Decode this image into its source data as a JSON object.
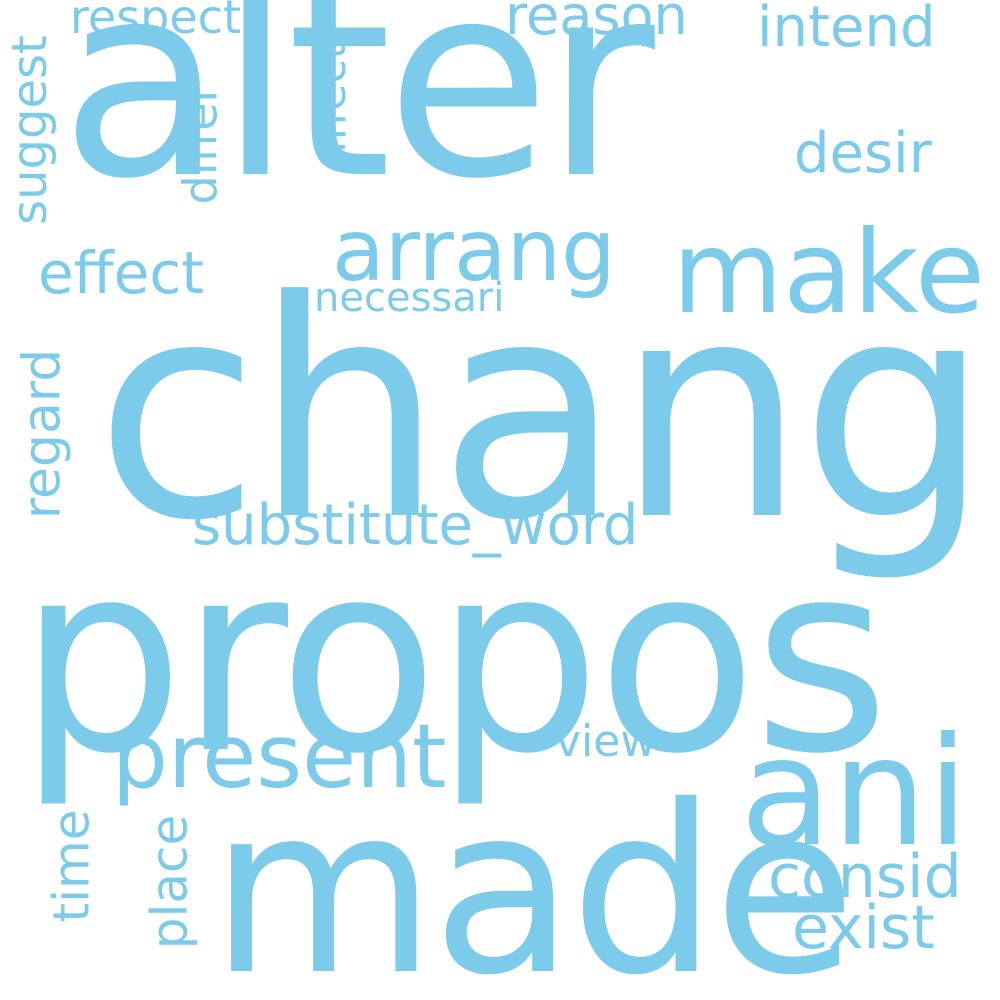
{
  "word_cloud": {
    "color": "#7ccbea",
    "words": {
      "chang": "chang",
      "propos": "propos",
      "alter": "alter",
      "made": "made",
      "ani": "ani",
      "make": "make",
      "arrang": "arrang",
      "present": "present",
      "substitute_word": "substitute_word",
      "necessari": "necessari",
      "effect": "effect",
      "respect": "respect",
      "reason": "reason",
      "intend": "intend",
      "desir": "desir",
      "suggest": "suggest",
      "differ": "differ",
      "affect": "affect",
      "regard": "regard",
      "view": "view",
      "consid": "consid",
      "exist": "exist",
      "time": "time",
      "place": "place"
    }
  }
}
